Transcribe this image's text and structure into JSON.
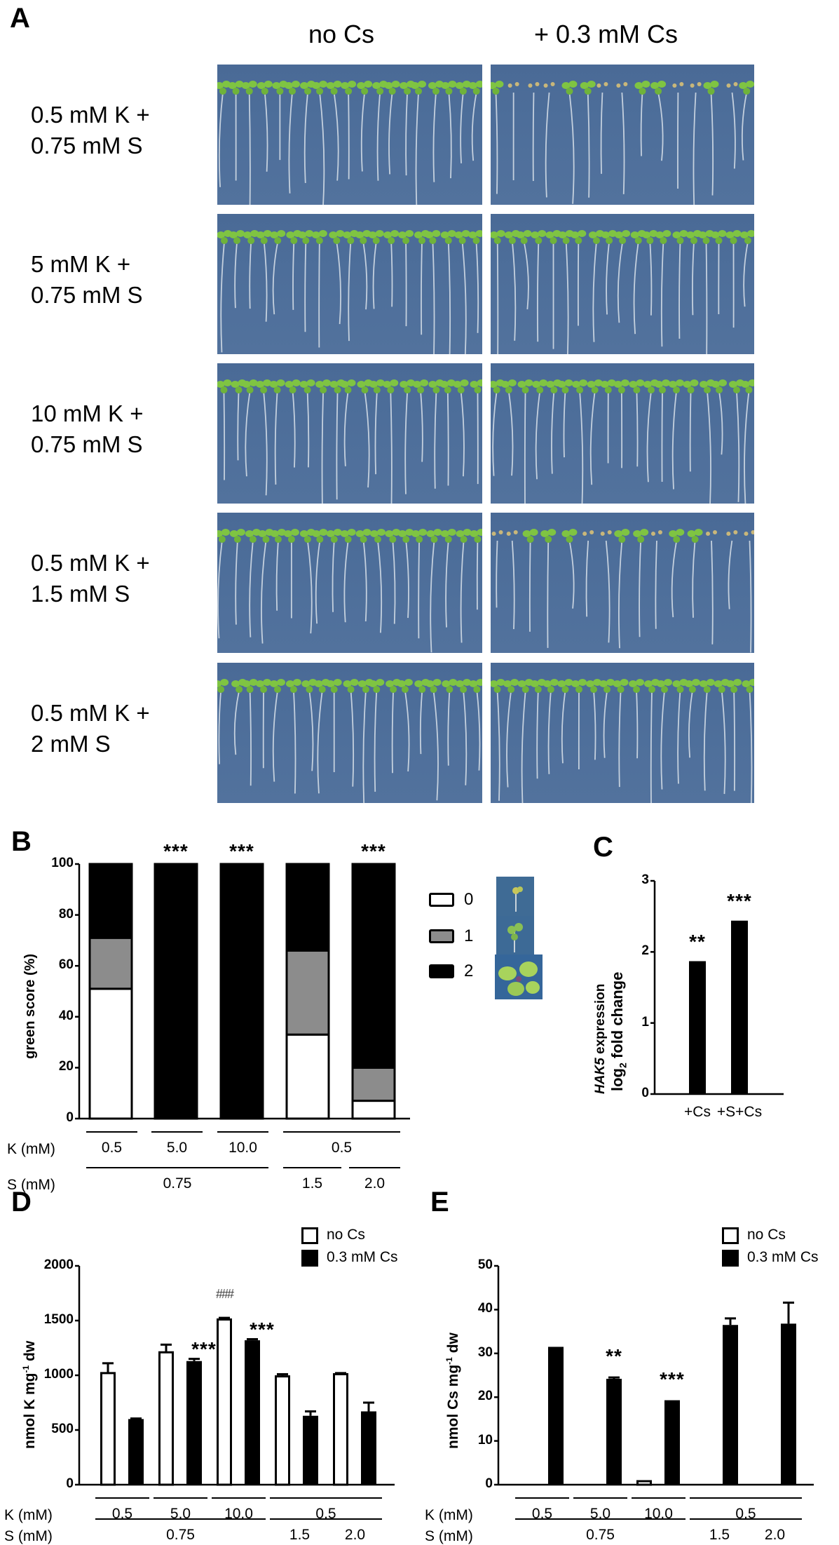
{
  "panel_a": {
    "letter": "A",
    "column_headers": [
      "no Cs",
      "+ 0.3 mM Cs"
    ],
    "rows": [
      {
        "label": "0.5 mM K +\n0.75 mM S"
      },
      {
        "label": "5 mM K +\n0.75 mM S"
      },
      {
        "label": "10 mM K +\n0.75 mM S"
      },
      {
        "label": "0.5 mM K +\n1.5 mM S"
      },
      {
        "label": "0.5 mM K +\n2 mM S"
      }
    ],
    "photo_background": "#4d6e9a",
    "seedling_color": "#7fc442"
  },
  "chart_data": [
    {
      "panel": "B",
      "type": "bar",
      "stacked": true,
      "ylabel": "green score (%)",
      "ylim": [
        0,
        100
      ],
      "yticks": [
        0,
        20,
        40,
        60,
        80,
        100
      ],
      "categories": [
        "K 0.5 / S 0.75",
        "K 5.0 / S 0.75",
        "K 10.0 / S 0.75",
        "K 0.5 / S 1.5",
        "K 0.5 / S 2.0"
      ],
      "series": [
        {
          "name": "0",
          "color": "#ffffff",
          "values": [
            51,
            0,
            0,
            33,
            7
          ]
        },
        {
          "name": "1",
          "color": "#8c8c8c",
          "values": [
            20,
            0,
            0,
            33,
            13
          ]
        },
        {
          "name": "2",
          "color": "#000000",
          "values": [
            29,
            100,
            100,
            34,
            80
          ]
        }
      ],
      "annotations": [
        "",
        "***",
        "***",
        "",
        "***"
      ],
      "legend": [
        "0",
        "1",
        "2"
      ],
      "legend_position": "right",
      "x_rows": {
        "K (mM)": [
          {
            "text": "0.5",
            "span": [
              0
            ]
          },
          {
            "text": "5.0",
            "span": [
              1
            ]
          },
          {
            "text": "10.0",
            "span": [
              2
            ]
          },
          {
            "text": "0.5",
            "span": [
              3,
              4
            ]
          }
        ],
        "S (mM)": [
          {
            "text": "0.75",
            "span": [
              0,
              2
            ]
          },
          {
            "text": "1.5",
            "span": [
              3
            ]
          },
          {
            "text": "2.0",
            "span": [
              4
            ]
          }
        ]
      }
    },
    {
      "panel": "C",
      "type": "bar",
      "ylabel": "HAK5 expression log2 fold change",
      "ylim": [
        0,
        3
      ],
      "yticks": [
        0,
        1,
        2,
        3
      ],
      "categories": [
        "+Cs",
        "+S+Cs"
      ],
      "values": [
        1.87,
        2.44
      ],
      "annotations": [
        "**",
        "***"
      ]
    },
    {
      "panel": "D",
      "type": "bar",
      "ylabel": "nmol K mg-1 dw",
      "ylim": [
        0,
        2000
      ],
      "yticks": [
        0,
        500,
        1000,
        1500,
        2000
      ],
      "categories": [
        "K 0.5 / S 0.75",
        "K 5.0 / S 0.75",
        "K 10.0 / S 0.75",
        "K 0.5 / S 1.5",
        "K 0.5 / S 2.0"
      ],
      "series": [
        {
          "name": "no Cs",
          "color": "#ffffff",
          "values": [
            1020,
            1210,
            1510,
            990,
            1010
          ],
          "errors": [
            90,
            70,
            15,
            20,
            10
          ]
        },
        {
          "name": "0.3 mM Cs",
          "color": "#000000",
          "values": [
            600,
            1130,
            1320,
            630,
            670
          ],
          "errors": [
            5,
            20,
            10,
            40,
            80
          ]
        }
      ],
      "annotations": [
        {
          "category": 1,
          "series": "0.3 mM Cs",
          "text": "***"
        },
        {
          "category": 2,
          "series": "no Cs",
          "text": "###"
        },
        {
          "category": 2,
          "series": "0.3 mM Cs",
          "text": "***"
        }
      ],
      "legend": [
        "no Cs",
        "0.3 mM Cs"
      ],
      "legend_position": "top-right",
      "x_rows": {
        "K (mM)": [
          {
            "text": "0.5",
            "span": [
              0
            ]
          },
          {
            "text": "5.0",
            "span": [
              1
            ]
          },
          {
            "text": "10.0",
            "span": [
              2
            ]
          },
          {
            "text": "0.5",
            "span": [
              3,
              4
            ]
          }
        ],
        "S (mM)": [
          {
            "text": "0.75",
            "span": [
              0,
              2
            ]
          },
          {
            "text": "1.5",
            "span": [
              3
            ]
          },
          {
            "text": "2.0",
            "span": [
              4
            ]
          }
        ]
      }
    },
    {
      "panel": "E",
      "type": "bar",
      "ylabel": "nmol Cs mg-1 dw",
      "ylim": [
        0,
        50
      ],
      "yticks": [
        0,
        10,
        20,
        30,
        40,
        50
      ],
      "categories": [
        "K 0.5 / S 0.75",
        "K 5.0 / S 0.75",
        "K 10.0 / S 0.75",
        "K 0.5 / S 1.5",
        "K 0.5 / S 2.0"
      ],
      "series": [
        {
          "name": "no Cs",
          "color": "#ffffff",
          "values": [
            0,
            0,
            0.8,
            0,
            0
          ],
          "errors": [
            0,
            0,
            0,
            0,
            0
          ]
        },
        {
          "name": "0.3 mM Cs",
          "color": "#000000",
          "values": [
            31.5,
            24.2,
            19.3,
            36.5,
            36.8
          ],
          "errors": [
            0,
            0.3,
            0,
            1.5,
            4.8
          ]
        }
      ],
      "annotations": [
        {
          "category": 1,
          "series": "0.3 mM Cs",
          "text": "**"
        },
        {
          "category": 2,
          "series": "0.3 mM Cs",
          "text": "***"
        }
      ],
      "legend": [
        "no Cs",
        "0.3 mM Cs"
      ],
      "legend_position": "top-right",
      "x_rows": {
        "K (mM)": [
          {
            "text": "0.5",
            "span": [
              0
            ]
          },
          {
            "text": "5.0",
            "span": [
              1
            ]
          },
          {
            "text": "10.0",
            "span": [
              2
            ]
          },
          {
            "text": "0.5",
            "span": [
              3,
              4
            ]
          }
        ],
        "S (mM)": [
          {
            "text": "0.75",
            "span": [
              0,
              2
            ]
          },
          {
            "text": "1.5",
            "span": [
              3
            ]
          },
          {
            "text": "2.0",
            "span": [
              4
            ]
          }
        ]
      }
    }
  ],
  "panel_b": {
    "letter": "B",
    "ylabel": "green score (%)",
    "yticks": [
      "0",
      "20",
      "40",
      "60",
      "80",
      "100"
    ],
    "legend": [
      {
        "label": "0"
      },
      {
        "label": "1"
      },
      {
        "label": "2"
      }
    ],
    "stars": [
      "***",
      "***",
      "***"
    ],
    "k_row_title": "K (mM)",
    "s_row_title": "S (mM)",
    "k_values": [
      "0.5",
      "5.0",
      "10.0",
      "0.5"
    ],
    "s_values": [
      "0.75",
      "1.5",
      "2.0"
    ]
  },
  "panel_c": {
    "letter": "C",
    "ylabel_gene": "HAK5",
    "ylabel_line1_rest": " expression",
    "ylabel_line2": "log",
    "ylabel_sub": "2",
    "ylabel_line2_rest": " fold change",
    "yticks": [
      "0",
      "1",
      "2",
      "3"
    ],
    "categories": [
      "+Cs",
      "+S+Cs"
    ],
    "stars": [
      "**",
      "***"
    ]
  },
  "panel_d": {
    "letter": "D",
    "ylabel": "nmol K mg",
    "ylabel_sup": "-1",
    "ylabel_rest": " dw",
    "yticks": [
      "0",
      "500",
      "1000",
      "1500",
      "2000"
    ],
    "legend": [
      "no Cs",
      "0.3 mM Cs"
    ],
    "stars": [
      "***",
      "***"
    ],
    "hash": "###",
    "k_row_title": "K (mM)",
    "s_row_title": "S (mM)",
    "k_values": [
      "0.5",
      "5.0",
      "10.0",
      "0.5"
    ],
    "s_values": [
      "0.75",
      "1.5",
      "2.0"
    ]
  },
  "panel_e": {
    "letter": "E",
    "ylabel": "nmol Cs mg",
    "ylabel_sup": "-1",
    "ylabel_rest": " dw",
    "yticks": [
      "0",
      "10",
      "20",
      "30",
      "40",
      "50"
    ],
    "legend": [
      "no Cs",
      "0.3 mM Cs"
    ],
    "stars": [
      "**",
      "***"
    ],
    "k_row_title": "K (mM)",
    "s_row_title": "S (mM)",
    "k_values": [
      "0.5",
      "5.0",
      "10.0",
      "0.5"
    ],
    "s_values": [
      "0.75",
      "1.5",
      "2.0"
    ]
  }
}
